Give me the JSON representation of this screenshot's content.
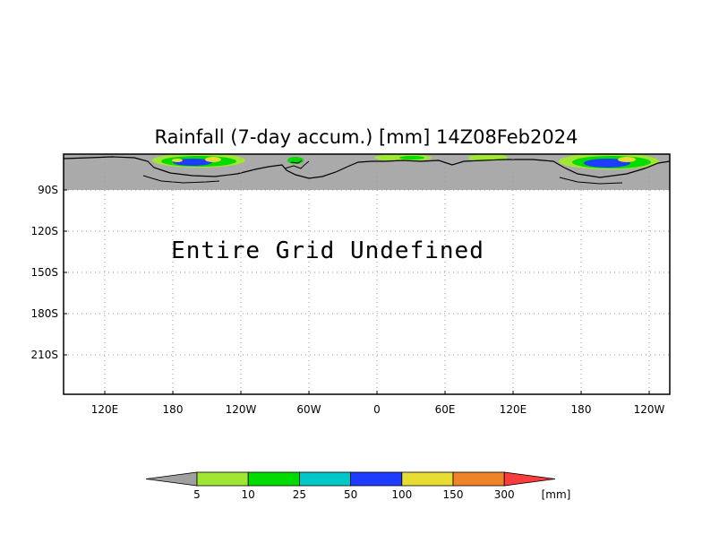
{
  "chart_data": {
    "type": "heatmap",
    "title": "Rainfall (7-day accum.) [mm] 14Z08Feb2024",
    "message": "Entire Grid Undefined",
    "x_tick_labels": [
      "120E",
      "180",
      "120W",
      "60W",
      "0",
      "60E",
      "120E",
      "180",
      "120W"
    ],
    "y_tick_labels": [
      "90S",
      "120S",
      "150S",
      "180S",
      "210S"
    ],
    "grid": true,
    "colorbar": {
      "unit": "[mm]",
      "thresholds": [
        "5",
        "10",
        "25",
        "50",
        "100",
        "150",
        "300"
      ],
      "colors": [
        "#a0a0a0",
        "#a0e632",
        "#00dc00",
        "#00c8c8",
        "#1e3cff",
        "#e6dc32",
        "#f08228",
        "#fa3c3c"
      ]
    },
    "colors": {
      "undefined_land": "#aaaaaa",
      "rain_light": "#a0e632",
      "rain_moderate": "#00dc00",
      "rain_heavy": "#1e3cff",
      "rain_very_heavy": "#e6dc32"
    }
  }
}
